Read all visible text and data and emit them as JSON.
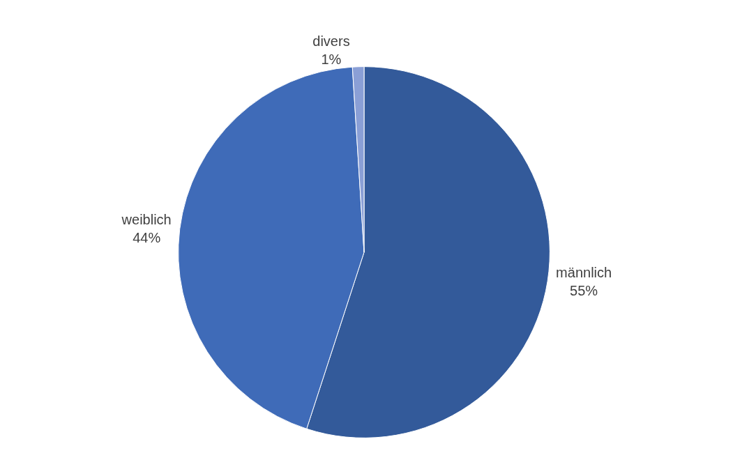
{
  "chart_data": {
    "type": "pie",
    "categories": [
      "männlich",
      "weiblich",
      "divers"
    ],
    "values": [
      55,
      44,
      1
    ],
    "value_labels": [
      "55%",
      "44%",
      "1%"
    ],
    "colors": [
      "#335a9a",
      "#3f6bb8",
      "#8a9fd6"
    ],
    "legend": false
  }
}
